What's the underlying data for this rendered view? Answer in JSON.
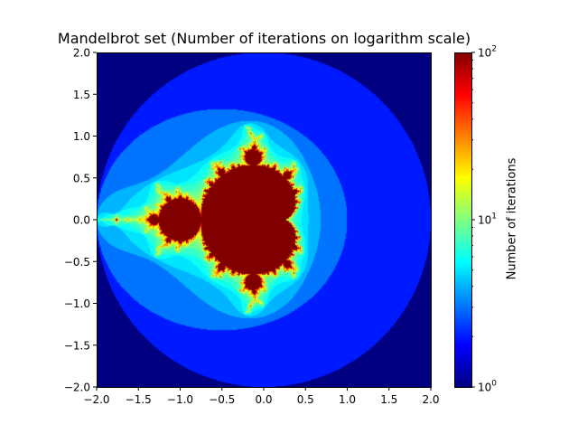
{
  "chart_data": {
    "type": "heatmap",
    "title": "Mandelbrot set (Number of iterations on logarithm scale)",
    "xlim": [
      -2.0,
      2.0
    ],
    "ylim": [
      -2.0,
      2.0
    ],
    "x_ticks": [
      "−2.0",
      "−1.5",
      "−1.0",
      "−0.5",
      "0.0",
      "0.5",
      "1.0",
      "1.5",
      "2.0"
    ],
    "y_ticks": [
      "2.0",
      "1.5",
      "1.0",
      "0.5",
      "0.0",
      "−0.5",
      "−1.0",
      "−1.5",
      "−2.0"
    ],
    "x_tick_values": [
      -2.0,
      -1.5,
      -1.0,
      -0.5,
      0.0,
      0.5,
      1.0,
      1.5,
      2.0
    ],
    "y_tick_values": [
      2.0,
      1.5,
      1.0,
      0.5,
      0.0,
      -0.5,
      -1.0,
      -1.5,
      -2.0
    ],
    "max_iterations": 100,
    "escape_radius": 2.0,
    "colormap": "jet",
    "color_scale": "log",
    "colorbar": {
      "label": "Number of iterations",
      "range": [
        1,
        100
      ],
      "ticks": [
        {
          "value": 100,
          "base": "10",
          "exp": "2"
        },
        {
          "value": 10,
          "base": "10",
          "exp": "1"
        },
        {
          "value": 1,
          "base": "10",
          "exp": "0"
        }
      ]
    }
  }
}
